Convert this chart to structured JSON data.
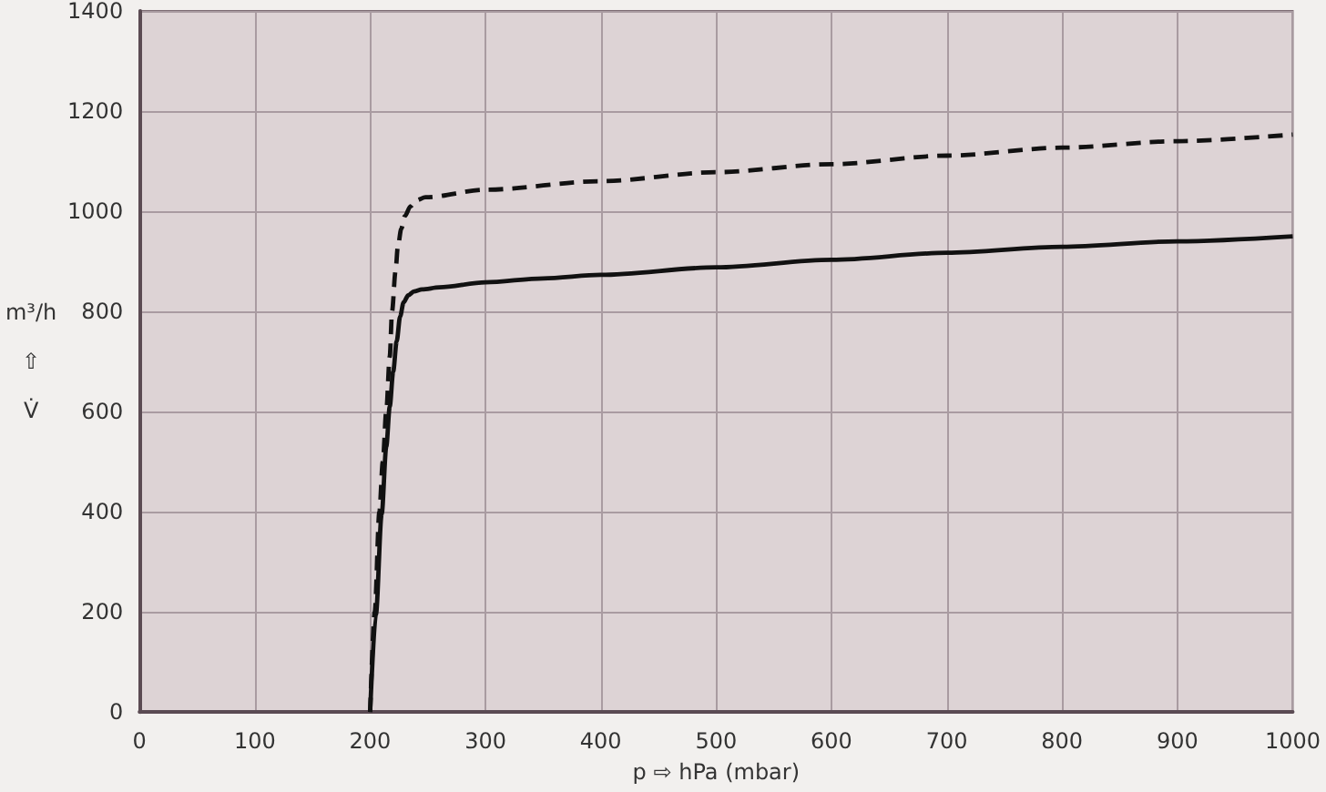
{
  "chart_data": {
    "type": "line",
    "xlabel": "p ⇨ hPa (mbar)",
    "ylabel": "m³/h\n⇧\nV̇",
    "xlim": [
      0,
      1000
    ],
    "ylim": [
      0,
      1400
    ],
    "xticks": [
      0,
      100,
      200,
      300,
      400,
      500,
      600,
      700,
      800,
      900,
      1000
    ],
    "yticks": [
      0,
      200,
      400,
      600,
      800,
      1000,
      1200,
      1400
    ],
    "grid": true,
    "marker": "none",
    "series": [
      {
        "color": "#111111",
        "line_style": "solid",
        "x": [
          200,
          205,
          210,
          214,
          217,
          220,
          223,
          226,
          229,
          233,
          238,
          245,
          260,
          300,
          350,
          400,
          500,
          600,
          700,
          800,
          900,
          1000
        ],
        "values": [
          0,
          195,
          395,
          530,
          610,
          680,
          740,
          790,
          818,
          832,
          840,
          844,
          848,
          858,
          866,
          873,
          888,
          903,
          917,
          929,
          940,
          950
        ]
      },
      {
        "color": "#111111",
        "line_style": "dashed",
        "x": [
          200,
          204,
          208,
          211,
          214,
          217,
          219,
          222,
          224,
          227,
          230,
          235,
          240,
          248,
          300,
          400,
          500,
          600,
          700,
          800,
          900,
          1000
        ],
        "values": [
          0,
          200,
          400,
          500,
          602,
          710,
          800,
          880,
          929,
          965,
          990,
          1010,
          1022,
          1028,
          1043,
          1060,
          1078,
          1094,
          1111,
          1127,
          1140,
          1153
        ]
      }
    ]
  }
}
